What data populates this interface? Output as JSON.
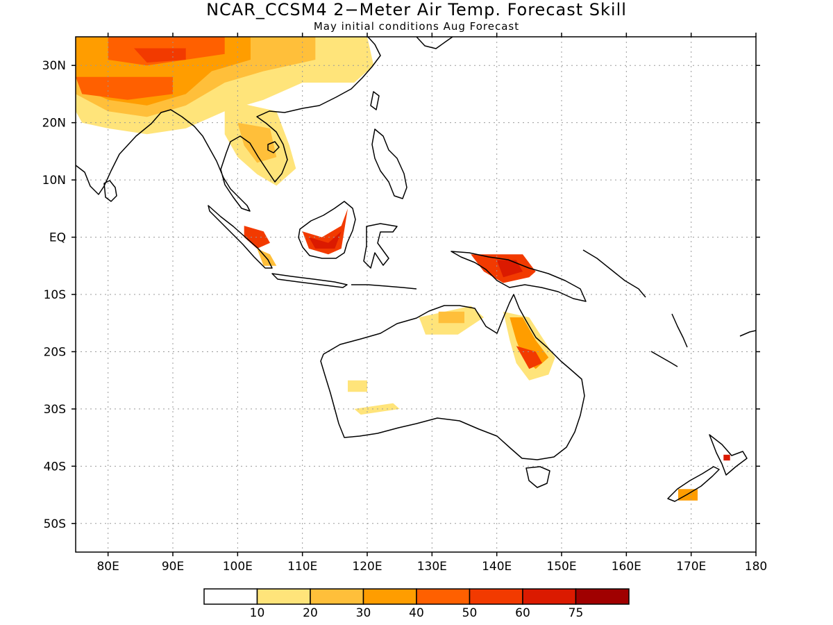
{
  "title": "NCAR_CCSM4 2−Meter Air Temp. Forecast Skill",
  "subtitle": "May initial conditions  Aug Forecast",
  "map": {
    "lon_range": [
      75,
      180
    ],
    "lat_range": [
      -55,
      35
    ],
    "x_ticks": [
      {
        "lon": 80,
        "label": "80E"
      },
      {
        "lon": 90,
        "label": "90E"
      },
      {
        "lon": 100,
        "label": "100E"
      },
      {
        "lon": 110,
        "label": "110E"
      },
      {
        "lon": 120,
        "label": "120E"
      },
      {
        "lon": 130,
        "label": "130E"
      },
      {
        "lon": 140,
        "label": "140E"
      },
      {
        "lon": 150,
        "label": "150E"
      },
      {
        "lon": 160,
        "label": "160E"
      },
      {
        "lon": 170,
        "label": "170E"
      },
      {
        "lon": 180,
        "label": "180"
      }
    ],
    "y_ticks": [
      {
        "lat": 30,
        "label": "30N"
      },
      {
        "lat": 20,
        "label": "20N"
      },
      {
        "lat": 10,
        "label": "10N"
      },
      {
        "lat": 0,
        "label": "EQ"
      },
      {
        "lat": -10,
        "label": "10S"
      },
      {
        "lat": -20,
        "label": "20S"
      },
      {
        "lat": -30,
        "label": "30S"
      },
      {
        "lat": -40,
        "label": "40S"
      },
      {
        "lat": -50,
        "label": "50S"
      }
    ],
    "grid": "dotted"
  },
  "legend": {
    "colors": [
      "#ffffff",
      "#ffe47a",
      "#ffbf3a",
      "#ff9d00",
      "#ff6000",
      "#f23a00",
      "#db1a00",
      "#a00000"
    ],
    "labels": [
      "10",
      "20",
      "30",
      "40",
      "50",
      "60",
      "75"
    ]
  }
}
